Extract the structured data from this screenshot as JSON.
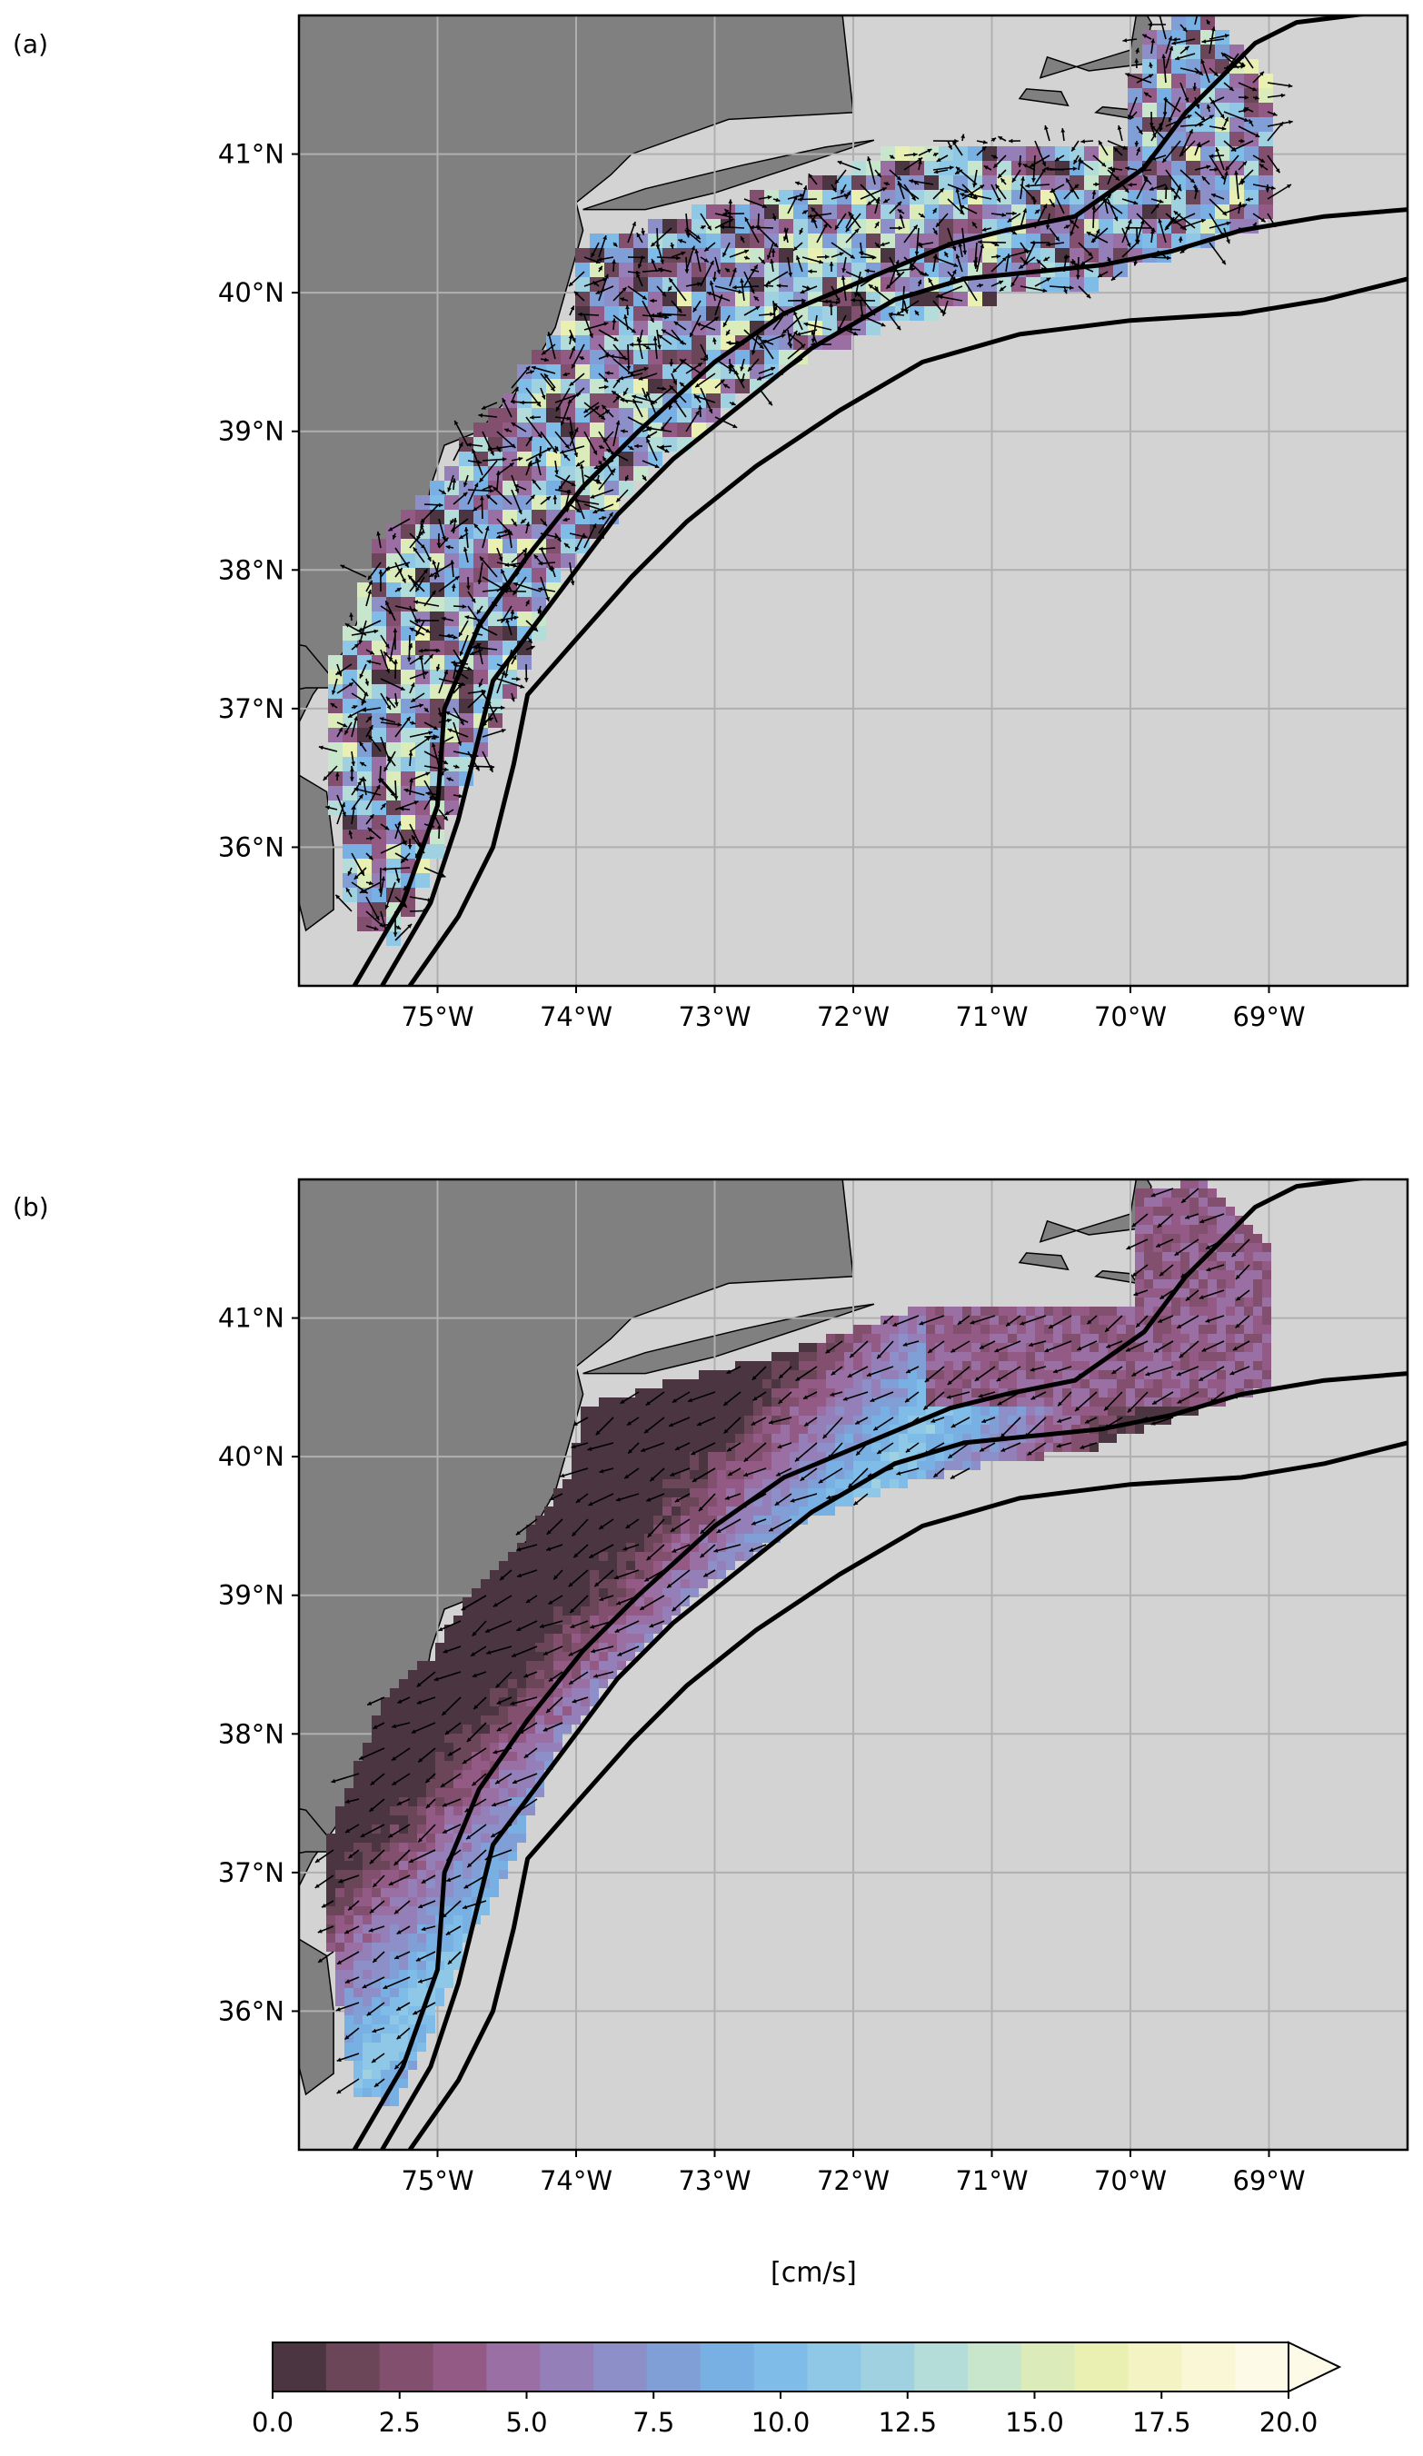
{
  "panels": [
    {
      "label": "(a)"
    },
    {
      "label": "(b)"
    }
  ],
  "map": {
    "lon_range": [
      -76.0,
      -68.0
    ],
    "lat_range": [
      35.0,
      42.0
    ],
    "lon_ticks": [
      -75,
      -74,
      -73,
      -72,
      -71,
      -70,
      -69
    ],
    "lon_tick_labels": [
      "75°W",
      "74°W",
      "73°W",
      "72°W",
      "71°W",
      "70°W",
      "69°W"
    ],
    "lat_ticks": [
      36,
      37,
      38,
      39,
      40,
      41
    ],
    "lat_tick_labels": [
      "36°N",
      "37°N",
      "38°N",
      "39°N",
      "40°N",
      "41°N"
    ],
    "grid": true
  },
  "colorbar": {
    "units_label": "[cm/s]",
    "range": [
      0.0,
      20.0
    ],
    "extend": "max",
    "tick_labels": [
      "0.0",
      "2.5",
      "5.0",
      "7.5",
      "10.0",
      "12.5",
      "15.0",
      "17.5",
      "20.0"
    ],
    "colors": [
      "#4a3540",
      "#6b4558",
      "#82506e",
      "#935a85",
      "#9a6fa3",
      "#957fb8",
      "#8d90c8",
      "#7f9fd6",
      "#79b0e3",
      "#7fbce8",
      "#8ec8e6",
      "#a0d1e0",
      "#b4dcd8",
      "#c8e6cc",
      "#dbecba",
      "#e9f0b2",
      "#f3f3c4",
      "#faf7d6",
      "#fdfbe8"
    ]
  },
  "colors": {
    "land": "#808080",
    "ocean": "#d3d3d3",
    "grid": "#b0b0b0",
    "contour": "#000000"
  }
}
